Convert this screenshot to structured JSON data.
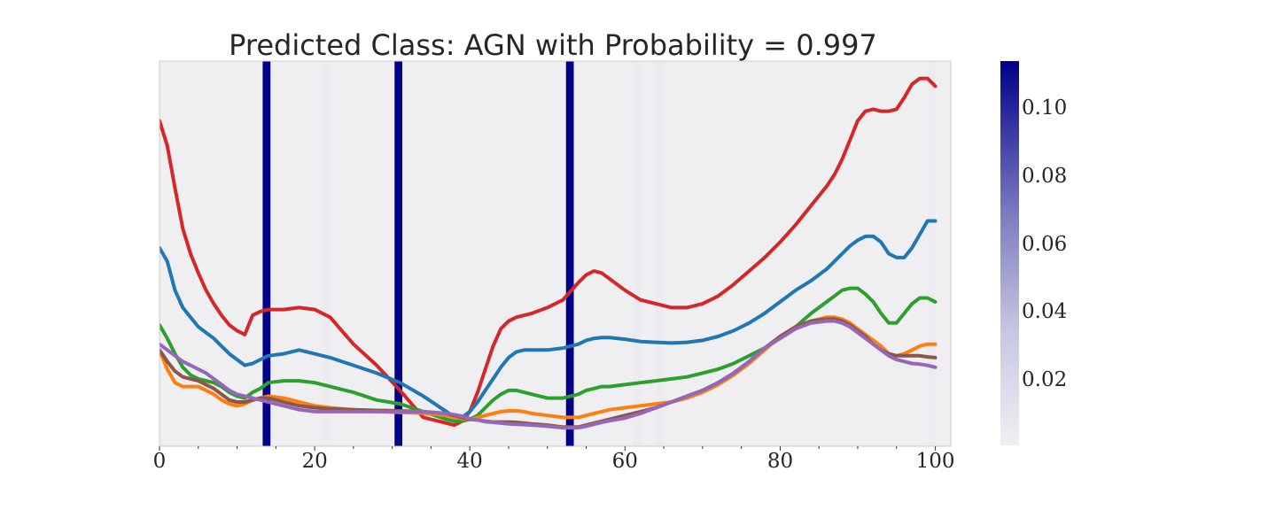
{
  "chart_data": {
    "type": "line",
    "title": "Predicted Class: AGN with Probability = 0.997",
    "xlabel": "",
    "ylabel": "",
    "xlim": [
      0,
      102
    ],
    "ylim": [
      0,
      1
    ],
    "grid": false,
    "x_ticks": [
      0,
      20,
      40,
      60,
      80,
      100
    ],
    "x_tick_labels": [
      "0",
      "20",
      "40",
      "60",
      "80",
      "100"
    ],
    "x_minor_ticks": [
      5,
      10,
      15,
      25,
      30,
      35,
      45,
      50,
      55,
      65,
      70,
      75,
      85,
      90,
      95
    ],
    "background_color": "#efeff2",
    "attention_colormap": {
      "min_color": "#efeff2",
      "max_color": "#00008b",
      "min": 0.0,
      "max": 0.113
    },
    "attention_bands": [
      {
        "x_start": 13.3,
        "x_end": 14.3,
        "value": 0.113
      },
      {
        "x_start": 30.3,
        "x_end": 31.3,
        "value": 0.113
      },
      {
        "x_start": 52.4,
        "x_end": 53.4,
        "value": 0.113
      },
      {
        "x_start": 21.0,
        "x_end": 22.0,
        "value": 0.001
      },
      {
        "x_start": 61.0,
        "x_end": 62.0,
        "value": 0.002
      },
      {
        "x_start": 64.0,
        "x_end": 65.0,
        "value": 0.002
      },
      {
        "x_start": 99.0,
        "x_end": 100.0,
        "value": 0.002
      }
    ],
    "colorbar": {
      "ticks": [
        0.02,
        0.04,
        0.06,
        0.08,
        0.1
      ],
      "tick_labels": [
        "0.02",
        "0.04",
        "0.06",
        "0.08",
        "0.10"
      ],
      "min": 0.0,
      "max": 0.113
    },
    "series": [
      {
        "color": "#d62728",
        "x": [
          0,
          1,
          2,
          3,
          4,
          5,
          6,
          7,
          8,
          9,
          10,
          11,
          12,
          13,
          14,
          16,
          18,
          20,
          22,
          25,
          28,
          31,
          34,
          37,
          38,
          39,
          40,
          41,
          42,
          43,
          44,
          45,
          46,
          47,
          48,
          50,
          52,
          54,
          55,
          56,
          57,
          58,
          60,
          62,
          64,
          66,
          68,
          70,
          72,
          74,
          76,
          78,
          80,
          82,
          84,
          86,
          87,
          88,
          89,
          90,
          91,
          92,
          93,
          94,
          95,
          96,
          97,
          98,
          99,
          100
        ],
        "y": [
          0.845,
          0.78,
          0.67,
          0.565,
          0.5,
          0.45,
          0.405,
          0.37,
          0.34,
          0.315,
          0.3,
          0.29,
          0.34,
          0.35,
          0.355,
          0.355,
          0.36,
          0.355,
          0.335,
          0.265,
          0.21,
          0.145,
          0.075,
          0.06,
          0.055,
          0.065,
          0.09,
          0.14,
          0.2,
          0.26,
          0.305,
          0.325,
          0.335,
          0.34,
          0.345,
          0.36,
          0.38,
          0.425,
          0.445,
          0.455,
          0.45,
          0.435,
          0.405,
          0.38,
          0.37,
          0.36,
          0.36,
          0.37,
          0.39,
          0.42,
          0.455,
          0.49,
          0.53,
          0.575,
          0.625,
          0.675,
          0.705,
          0.745,
          0.795,
          0.845,
          0.87,
          0.875,
          0.87,
          0.87,
          0.875,
          0.905,
          0.94,
          0.955,
          0.955,
          0.935
        ]
      },
      {
        "color": "#1f77b4",
        "x": [
          0,
          1,
          2,
          3,
          4,
          5,
          6,
          7,
          8,
          9,
          10,
          11,
          12,
          13,
          14,
          16,
          18,
          20,
          22,
          25,
          28,
          31,
          34,
          37,
          38,
          39,
          40,
          41,
          42,
          43,
          44,
          45,
          46,
          47,
          48,
          50,
          52,
          54,
          55,
          56,
          57,
          58,
          60,
          62,
          64,
          66,
          68,
          70,
          72,
          74,
          76,
          78,
          80,
          82,
          84,
          86,
          87,
          88,
          89,
          90,
          91,
          92,
          93,
          94,
          95,
          96,
          97,
          98,
          99,
          100
        ],
        "y": [
          0.515,
          0.48,
          0.405,
          0.36,
          0.335,
          0.31,
          0.295,
          0.28,
          0.26,
          0.24,
          0.225,
          0.21,
          0.215,
          0.225,
          0.235,
          0.24,
          0.25,
          0.24,
          0.23,
          0.21,
          0.19,
          0.165,
          0.13,
          0.09,
          0.075,
          0.075,
          0.09,
          0.115,
          0.145,
          0.175,
          0.205,
          0.23,
          0.245,
          0.25,
          0.25,
          0.25,
          0.255,
          0.265,
          0.275,
          0.28,
          0.282,
          0.282,
          0.278,
          0.272,
          0.27,
          0.268,
          0.27,
          0.275,
          0.285,
          0.3,
          0.32,
          0.345,
          0.375,
          0.405,
          0.43,
          0.46,
          0.48,
          0.5,
          0.52,
          0.535,
          0.545,
          0.545,
          0.53,
          0.5,
          0.49,
          0.49,
          0.515,
          0.55,
          0.585,
          0.585
        ]
      },
      {
        "color": "#2ca02c",
        "x": [
          0,
          1,
          2,
          3,
          4,
          5,
          6,
          7,
          8,
          9,
          10,
          11,
          12,
          13,
          14,
          16,
          18,
          20,
          22,
          25,
          28,
          31,
          34,
          37,
          38,
          39,
          40,
          41,
          42,
          43,
          44,
          45,
          46,
          47,
          48,
          50,
          52,
          54,
          55,
          56,
          57,
          58,
          60,
          62,
          64,
          66,
          68,
          70,
          72,
          74,
          76,
          78,
          80,
          82,
          84,
          86,
          87,
          88,
          89,
          90,
          91,
          92,
          93,
          94,
          95,
          96,
          97,
          98,
          99,
          100
        ],
        "y": [
          0.315,
          0.28,
          0.24,
          0.205,
          0.185,
          0.175,
          0.17,
          0.165,
          0.155,
          0.14,
          0.13,
          0.125,
          0.14,
          0.15,
          0.165,
          0.17,
          0.17,
          0.165,
          0.155,
          0.14,
          0.12,
          0.11,
          0.09,
          0.07,
          0.065,
          0.065,
          0.07,
          0.08,
          0.1,
          0.12,
          0.135,
          0.145,
          0.145,
          0.14,
          0.135,
          0.125,
          0.125,
          0.135,
          0.145,
          0.15,
          0.155,
          0.155,
          0.16,
          0.165,
          0.17,
          0.175,
          0.18,
          0.19,
          0.2,
          0.215,
          0.235,
          0.255,
          0.28,
          0.31,
          0.345,
          0.375,
          0.39,
          0.405,
          0.41,
          0.41,
          0.395,
          0.375,
          0.345,
          0.32,
          0.32,
          0.345,
          0.37,
          0.385,
          0.385,
          0.375
        ]
      },
      {
        "color": "#ff7f0e",
        "x": [
          0,
          1,
          2,
          3,
          4,
          5,
          6,
          7,
          8,
          9,
          10,
          11,
          12,
          13,
          14,
          16,
          18,
          20,
          22,
          25,
          28,
          31,
          34,
          37,
          38,
          39,
          40,
          41,
          42,
          43,
          44,
          45,
          46,
          47,
          48,
          50,
          52,
          54,
          55,
          56,
          57,
          58,
          60,
          62,
          64,
          66,
          68,
          70,
          72,
          74,
          76,
          78,
          80,
          82,
          84,
          86,
          87,
          88,
          89,
          90,
          91,
          92,
          93,
          94,
          95,
          96,
          97,
          98,
          99,
          100
        ],
        "y": [
          0.25,
          0.2,
          0.165,
          0.155,
          0.155,
          0.155,
          0.145,
          0.135,
          0.12,
          0.11,
          0.105,
          0.11,
          0.12,
          0.125,
          0.13,
          0.125,
          0.115,
          0.105,
          0.1,
          0.095,
          0.09,
          0.088,
          0.086,
          0.08,
          0.075,
          0.072,
          0.07,
          0.075,
          0.08,
          0.085,
          0.09,
          0.092,
          0.092,
          0.09,
          0.085,
          0.08,
          0.075,
          0.075,
          0.08,
          0.085,
          0.09,
          0.095,
          0.1,
          0.105,
          0.11,
          0.115,
          0.125,
          0.14,
          0.16,
          0.185,
          0.215,
          0.25,
          0.285,
          0.31,
          0.325,
          0.335,
          0.335,
          0.33,
          0.32,
          0.305,
          0.29,
          0.275,
          0.26,
          0.24,
          0.235,
          0.24,
          0.25,
          0.26,
          0.265,
          0.265
        ]
      },
      {
        "color": "#8c564b",
        "x": [
          0,
          1,
          2,
          3,
          4,
          5,
          6,
          7,
          8,
          9,
          10,
          11,
          12,
          13,
          14,
          16,
          18,
          20,
          22,
          25,
          28,
          31,
          34,
          37,
          38,
          39,
          40,
          41,
          42,
          43,
          44,
          45,
          46,
          47,
          48,
          50,
          52,
          54,
          55,
          56,
          57,
          58,
          60,
          62,
          64,
          66,
          68,
          70,
          72,
          74,
          76,
          78,
          80,
          82,
          84,
          86,
          87,
          88,
          89,
          90,
          91,
          92,
          93,
          94,
          95,
          96,
          97,
          98,
          99,
          100
        ],
        "y": [
          0.25,
          0.22,
          0.195,
          0.18,
          0.175,
          0.17,
          0.16,
          0.15,
          0.135,
          0.12,
          0.115,
          0.115,
          0.12,
          0.125,
          0.125,
          0.115,
          0.105,
          0.1,
          0.097,
          0.095,
          0.093,
          0.092,
          0.09,
          0.085,
          0.08,
          0.075,
          0.07,
          0.068,
          0.065,
          0.063,
          0.063,
          0.063,
          0.062,
          0.06,
          0.058,
          0.055,
          0.05,
          0.05,
          0.055,
          0.06,
          0.065,
          0.07,
          0.08,
          0.09,
          0.1,
          0.115,
          0.13,
          0.145,
          0.165,
          0.19,
          0.22,
          0.255,
          0.285,
          0.31,
          0.325,
          0.33,
          0.33,
          0.325,
          0.315,
          0.3,
          0.285,
          0.265,
          0.25,
          0.24,
          0.235,
          0.235,
          0.235,
          0.235,
          0.232,
          0.23
        ]
      },
      {
        "color": "#9467bd",
        "x": [
          0,
          1,
          2,
          3,
          4,
          5,
          6,
          7,
          8,
          9,
          10,
          11,
          12,
          13,
          14,
          16,
          18,
          20,
          22,
          25,
          28,
          31,
          34,
          37,
          38,
          39,
          40,
          41,
          42,
          43,
          44,
          45,
          46,
          47,
          48,
          50,
          52,
          54,
          55,
          56,
          57,
          58,
          60,
          62,
          64,
          66,
          68,
          70,
          72,
          74,
          76,
          78,
          80,
          82,
          84,
          86,
          87,
          88,
          89,
          90,
          91,
          92,
          93,
          94,
          95,
          96,
          97,
          98,
          99,
          100
        ],
        "y": [
          0.265,
          0.25,
          0.235,
          0.22,
          0.21,
          0.2,
          0.19,
          0.175,
          0.16,
          0.145,
          0.135,
          0.13,
          0.125,
          0.12,
          0.115,
          0.105,
          0.095,
          0.09,
          0.09,
          0.09,
          0.09,
          0.09,
          0.09,
          0.085,
          0.082,
          0.078,
          0.072,
          0.068,
          0.064,
          0.062,
          0.06,
          0.058,
          0.057,
          0.056,
          0.055,
          0.052,
          0.048,
          0.048,
          0.052,
          0.057,
          0.062,
          0.066,
          0.073,
          0.085,
          0.1,
          0.115,
          0.13,
          0.145,
          0.165,
          0.19,
          0.22,
          0.255,
          0.28,
          0.305,
          0.32,
          0.325,
          0.325,
          0.32,
          0.31,
          0.295,
          0.28,
          0.265,
          0.25,
          0.235,
          0.225,
          0.22,
          0.215,
          0.213,
          0.21,
          0.205
        ]
      }
    ]
  }
}
